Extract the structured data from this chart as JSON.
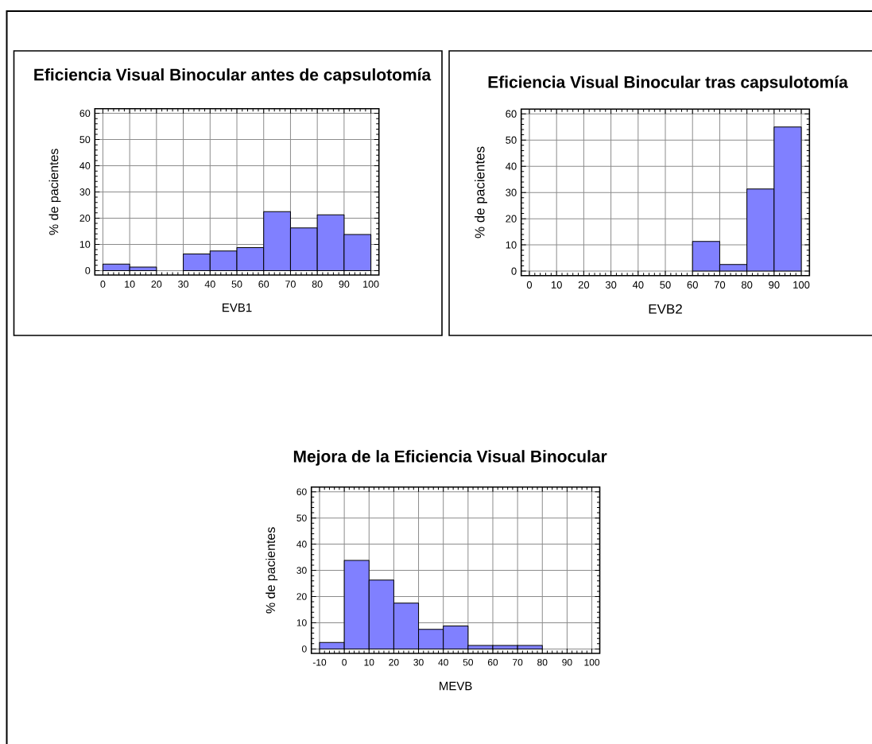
{
  "chart_data": [
    {
      "type": "histogram",
      "title": "Eficiencia Visual Binocular antes de capsulotomía",
      "xlabel": "EVB1",
      "ylabel": "% de pacientes",
      "bins": [
        0,
        10,
        20,
        30,
        40,
        50,
        60,
        70,
        80,
        90,
        100
      ],
      "values": [
        2.5,
        1.3,
        0,
        6.3,
        7.5,
        8.8,
        22.5,
        16.3,
        21.3,
        13.8
      ],
      "color": "#8080ff",
      "xlim": [
        -3,
        103
      ],
      "ylim": [
        -1.7,
        61.8
      ],
      "xticks": [
        0,
        10,
        20,
        30,
        40,
        50,
        60,
        70,
        80,
        90,
        100
      ],
      "yticks": [
        0,
        10,
        20,
        30,
        40,
        50,
        60
      ],
      "grid": true
    },
    {
      "type": "histogram",
      "title": "Eficiencia Visual Binocular tras capsulotomía",
      "xlabel": "EVB2",
      "ylabel": "% de pacientes",
      "bins": [
        0,
        10,
        20,
        30,
        40,
        50,
        60,
        70,
        80,
        90,
        100
      ],
      "values": [
        0,
        0,
        0,
        0,
        0,
        0,
        11.3,
        2.5,
        31.3,
        55
      ],
      "color": "#8080ff",
      "xlim": [
        -3,
        103
      ],
      "ylim": [
        -1.7,
        61.8
      ],
      "xticks": [
        0,
        10,
        20,
        30,
        40,
        50,
        60,
        70,
        80,
        90,
        100
      ],
      "yticks": [
        0,
        10,
        20,
        30,
        40,
        50,
        60
      ],
      "grid": true
    },
    {
      "type": "histogram",
      "title": "Mejora de la Eficiencia Visual Binocular",
      "xlabel": "MEVB",
      "ylabel": "% de pacientes",
      "bins": [
        -10,
        0,
        10,
        20,
        30,
        40,
        50,
        60,
        70,
        80,
        90,
        100
      ],
      "values": [
        2.5,
        33.8,
        26.3,
        17.5,
        7.5,
        8.8,
        1.3,
        1.3,
        1.3,
        0,
        0
      ],
      "color": "#8080ff",
      "xlim": [
        -13.3,
        103.2
      ],
      "ylim": [
        -1.7,
        61.8
      ],
      "xticks": [
        -10,
        0,
        10,
        20,
        30,
        40,
        50,
        60,
        70,
        80,
        90,
        100
      ],
      "yticks": [
        0,
        10,
        20,
        30,
        40,
        50,
        60
      ],
      "grid": true
    }
  ]
}
